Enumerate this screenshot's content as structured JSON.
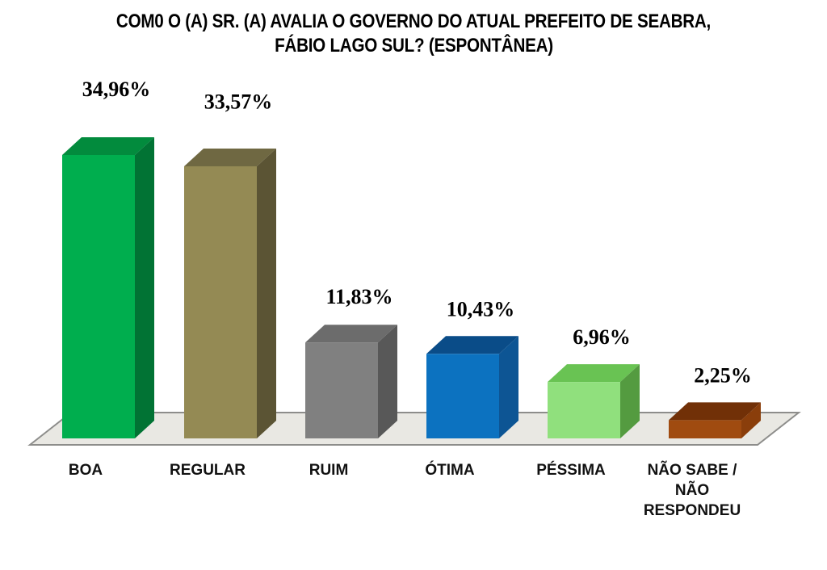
{
  "page": {
    "background_color": "#FFFFFF"
  },
  "chart_data": {
    "type": "bar",
    "style": "3d-perspective",
    "title": "COM0 O (A) SR. (A) AVALIA O GOVERNO DO ATUAL PREFEITO DE SEABRA, FÁBIO LAGO SUL? (ESPONTÂNEA)",
    "title_lines": [
      "COM0 O (A) SR. (A) AVALIA O GOVERNO DO ATUAL PREFEITO DE SEABRA,",
      "FÁBIO LAGO SUL? (ESPONTÂNEA)"
    ],
    "categories": [
      "BOA",
      "REGULAR",
      "RUIM",
      "ÓTIMA",
      "PÉSSIMA",
      "NÃO SABE /\nNÃO\nRESPONDEU"
    ],
    "values": [
      34.96,
      33.57,
      11.83,
      10.43,
      6.96,
      2.25
    ],
    "value_labels": [
      "34,96%",
      "33,57%",
      "11,83%",
      "10,43%",
      "6,96%",
      "2,25%"
    ],
    "bar_colors": [
      {
        "front": "#00AE4E",
        "top": "#028B3D",
        "side": "#017334"
      },
      {
        "front": "#948A54",
        "top": "#6F6842",
        "side": "#5B5434"
      },
      {
        "front": "#808080",
        "top": "#6C6C6C",
        "side": "#585858"
      },
      {
        "front": "#0C72C0",
        "top": "#0A4C88",
        "side": "#0D5594"
      },
      {
        "front": "#90E07D",
        "top": "#69C353",
        "side": "#549B40"
      },
      {
        "front": "#A04B10",
        "top": "#713007",
        "side": "#8A3E0B"
      }
    ],
    "floor_color": "#E9E8E3",
    "floor_border_color": "#8D8D8B",
    "text_color": "#000000",
    "legend": "none",
    "axes": "none",
    "gridlines": false,
    "ylim": [
      0,
      40
    ]
  }
}
